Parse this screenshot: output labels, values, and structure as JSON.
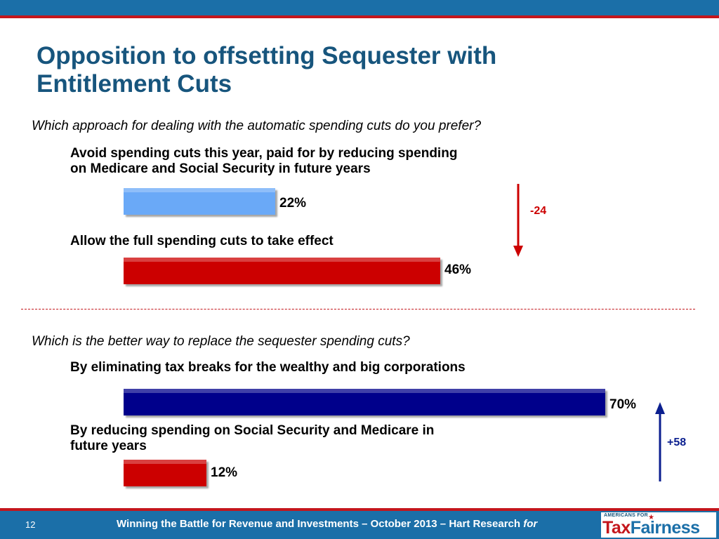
{
  "title": {
    "line1": "Opposition to offsetting Sequester with",
    "line2": "Entitlement Cuts"
  },
  "chart_data": [
    {
      "type": "bar",
      "title": "Which approach for dealing with the automatic spending cuts do you prefer?",
      "categories": [
        "Avoid spending cuts this year, paid for by reducing spending on Medicare and Social Security in future years",
        "Allow the full spending cuts to take effect"
      ],
      "category_lines": [
        [
          "Avoid spending cuts this year, paid for by reducing spending",
          "on Medicare and Social Security in future years"
        ],
        [
          "Allow the full spending cuts to take effect"
        ]
      ],
      "values": [
        22,
        46
      ],
      "value_labels": [
        "22%",
        "46%"
      ],
      "colors": [
        "#6aa9f7",
        "#cc0000"
      ],
      "difference": {
        "label": "-24",
        "direction": "down",
        "color": "#cc0000"
      },
      "xlim": [
        0,
        70
      ]
    },
    {
      "type": "bar",
      "title": "Which is the better way to replace the sequester spending cuts?",
      "categories": [
        "By eliminating tax breaks for the wealthy and big corporations",
        "By reducing spending on Social Security and Medicare in future years"
      ],
      "category_lines": [
        [
          "By eliminating tax breaks for the wealthy and big corporations"
        ],
        [
          "By reducing spending on Social Security and Medicare in",
          "future years"
        ]
      ],
      "values": [
        70,
        12
      ],
      "value_labels": [
        "70%",
        "12%"
      ],
      "colors": [
        "#00008b",
        "#cc0000"
      ],
      "difference": {
        "label": "+58",
        "direction": "up",
        "color": "#0b1f8f"
      },
      "xlim": [
        0,
        70
      ]
    }
  ],
  "footer": {
    "page_number": "12",
    "text": "Winning the Battle for Revenue and Investments – October 2013 – Hart Research",
    "for": "for"
  },
  "logo": {
    "top": "AMERICANS FOR",
    "tax": "Tax",
    "fairness": "Fairness"
  },
  "colors": {
    "band_blue": "#1b6fa8",
    "accent_red": "#c4161c",
    "title_blue": "#17557d"
  }
}
